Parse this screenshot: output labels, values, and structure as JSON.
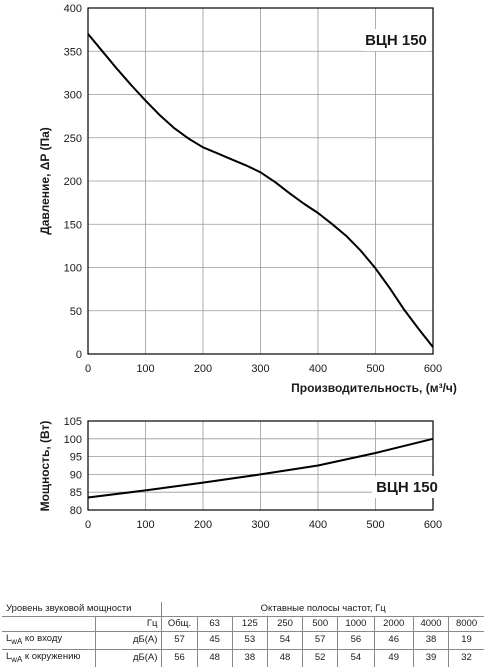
{
  "chart_data": [
    {
      "type": "line",
      "model_label": "ВЦН 150",
      "xlabel": "Производительность, (м³/ч)",
      "ylabel": "Давление, ΔP (Па)",
      "xlim": [
        0,
        600
      ],
      "ylim": [
        0,
        400
      ],
      "x_ticks": [
        0,
        100,
        200,
        300,
        400,
        500,
        600
      ],
      "y_ticks": [
        0,
        50,
        100,
        150,
        200,
        250,
        300,
        350,
        400
      ],
      "grid": true,
      "series": [
        {
          "color": "#000000",
          "x": [
            0,
            25,
            50,
            75,
            100,
            125,
            150,
            175,
            200,
            225,
            250,
            275,
            300,
            325,
            350,
            375,
            400,
            425,
            450,
            475,
            500,
            525,
            550,
            575,
            600
          ],
          "y": [
            370,
            350,
            330,
            311,
            293,
            276,
            261,
            249,
            239,
            232,
            225,
            218,
            210,
            199,
            186,
            174,
            163,
            150,
            136,
            119,
            99,
            76,
            51,
            29,
            8
          ]
        }
      ]
    },
    {
      "type": "line",
      "model_label": "ВЦН 150",
      "xlabel": "",
      "ylabel": "Мощность, (Вт)",
      "xlim": [
        0,
        600
      ],
      "ylim": [
        80,
        105
      ],
      "x_ticks": [
        0,
        100,
        200,
        300,
        400,
        500,
        600
      ],
      "y_ticks": [
        80,
        85,
        90,
        95,
        100,
        105
      ],
      "grid": true,
      "series": [
        {
          "color": "#000000",
          "x": [
            0,
            100,
            200,
            300,
            400,
            500,
            600
          ],
          "y": [
            83.5,
            85.5,
            87.7,
            90.0,
            92.5,
            96.0,
            100.0
          ]
        }
      ]
    }
  ],
  "sound_table": {
    "title": "Уровень звуковой мощности",
    "octave_header": "Октавные полосы частот, Гц",
    "hz_label": "Гц",
    "total_label": "Общ.",
    "frequencies": [
      "63",
      "125",
      "250",
      "500",
      "1000",
      "2000",
      "4000",
      "8000"
    ],
    "rows": [
      {
        "label_main": "L",
        "label_sub": "wA",
        "label_rest": " ко входу",
        "unit": "дБ(А)",
        "total": "57",
        "values": [
          "45",
          "53",
          "54",
          "57",
          "56",
          "46",
          "38",
          "19"
        ]
      },
      {
        "label_main": "L",
        "label_sub": "wA",
        "label_rest": " к окружению",
        "unit": "дБ(А)",
        "total": "56",
        "values": [
          "48",
          "38",
          "48",
          "52",
          "54",
          "49",
          "39",
          "32"
        ]
      }
    ]
  }
}
